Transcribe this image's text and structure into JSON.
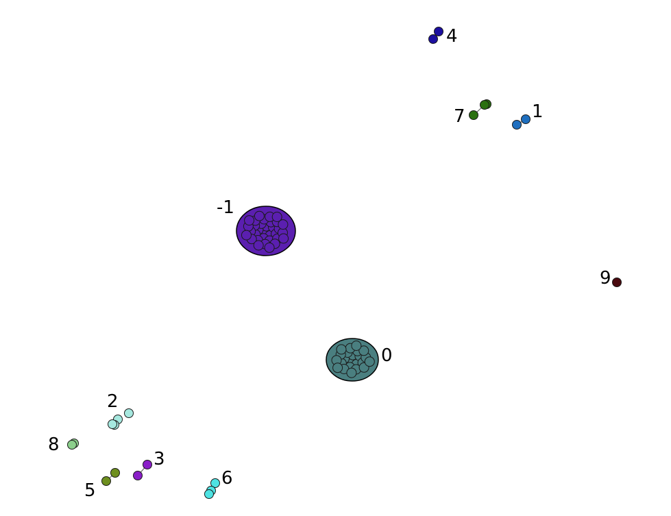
{
  "clusters": [
    {
      "id": "c-neg1",
      "label": "-1",
      "color": "#5b1fb0",
      "kind": "large"
    },
    {
      "id": "c0",
      "label": "0",
      "color": "#4a7f80",
      "kind": "large"
    },
    {
      "id": "c1",
      "label": "1",
      "color": "#1f6fbf",
      "kind": "pair"
    },
    {
      "id": "c2",
      "label": "2",
      "color": "#a6e8df",
      "kind": "group"
    },
    {
      "id": "c3",
      "label": "3",
      "color": "#8a1fc8",
      "kind": "pair"
    },
    {
      "id": "c4",
      "label": "4",
      "color": "#1c0fa0",
      "kind": "pair"
    },
    {
      "id": "c5",
      "label": "5",
      "color": "#6e8f1f",
      "kind": "pair"
    },
    {
      "id": "c6",
      "label": "6",
      "color": "#4ee3e3",
      "kind": "group"
    },
    {
      "id": "c7",
      "label": "7",
      "color": "#2a7010",
      "kind": "pair"
    },
    {
      "id": "c8",
      "label": "8",
      "color": "#8ccf8c",
      "kind": "pair"
    },
    {
      "id": "c9",
      "label": "9",
      "color": "#4a0a0f",
      "kind": "single"
    }
  ]
}
